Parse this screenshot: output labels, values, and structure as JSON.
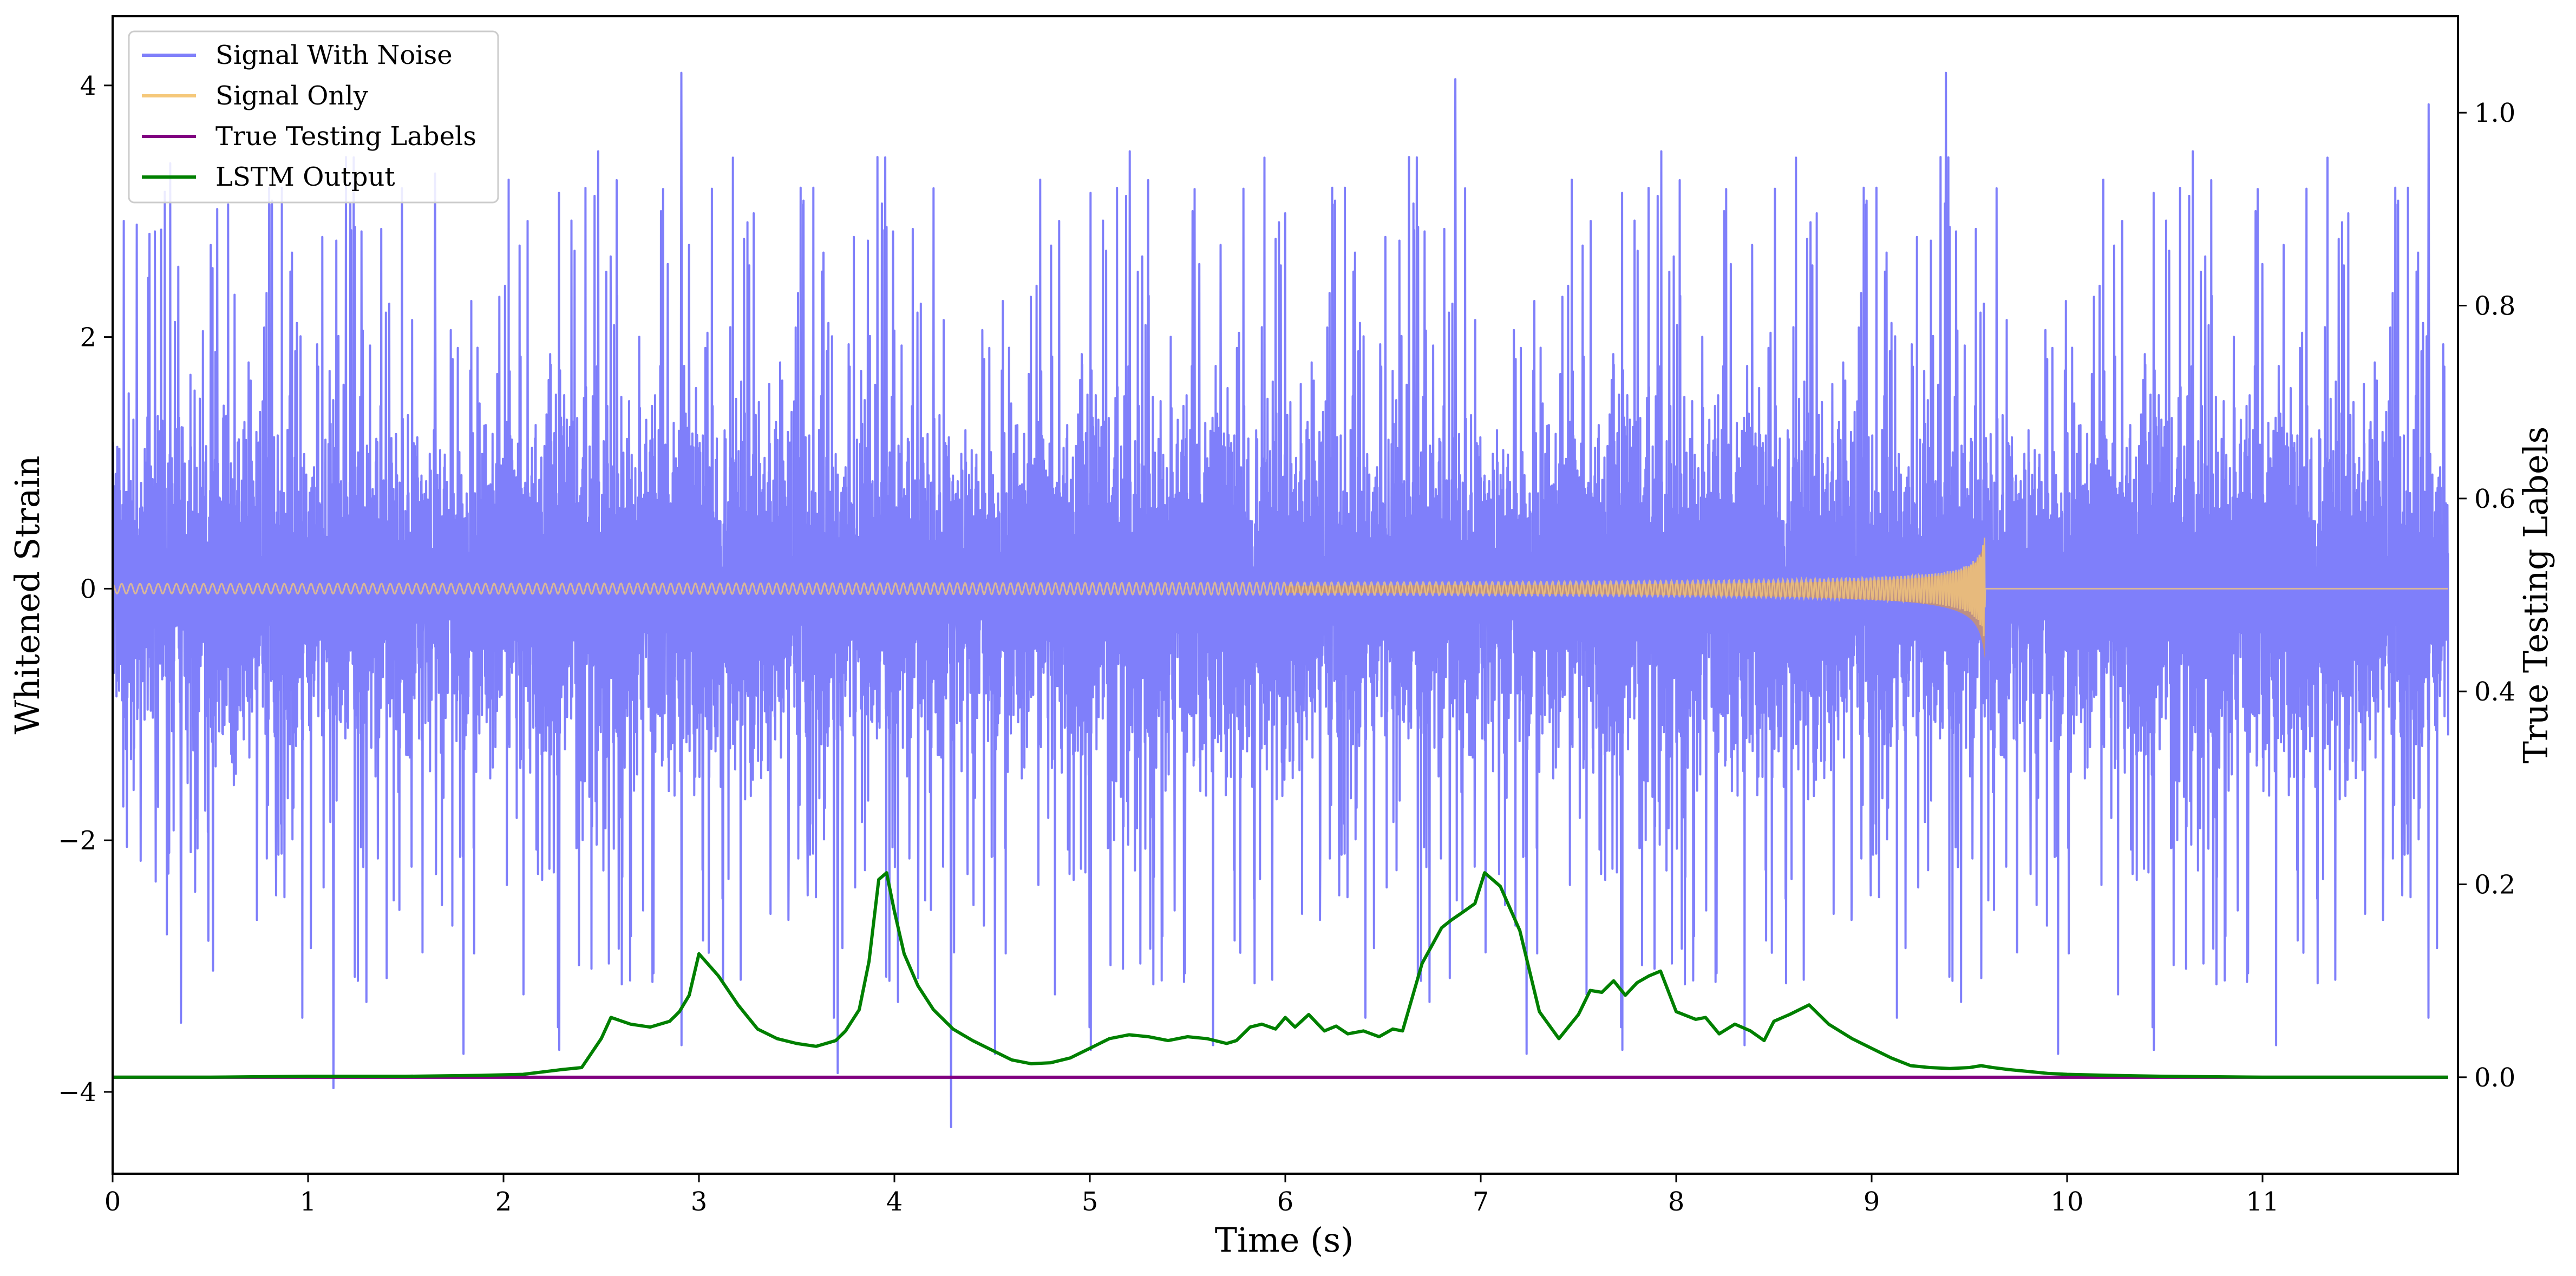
{
  "chart_data": {
    "type": "line",
    "title": "",
    "xlabel": "Time (s)",
    "ylabel": "Whitened Strain",
    "ylabel_right": "True Testing Labels",
    "xlim": [
      0,
      12
    ],
    "ylim": [
      -4.65,
      4.55
    ],
    "ylim_right": [
      -0.1,
      1.1
    ],
    "x_ticks": [
      0,
      1,
      2,
      3,
      4,
      5,
      6,
      7,
      8,
      9,
      10,
      11
    ],
    "x_tick_labels": [
      "0",
      "1",
      "2",
      "3",
      "4",
      "5",
      "6",
      "7",
      "8",
      "9",
      "10",
      "11"
    ],
    "y_ticks": [
      -4,
      -2,
      0,
      2,
      4
    ],
    "y_tick_labels": [
      "−4",
      "−2",
      "0",
      "2",
      "4"
    ],
    "y_ticks_right": [
      0.0,
      0.2,
      0.4,
      0.6,
      0.8,
      1.0
    ],
    "y_tick_labels_right": [
      "0.0",
      "0.2",
      "0.4",
      "0.6",
      "0.8",
      "1.0"
    ],
    "grid": false,
    "legend_position": "top-left",
    "series": [
      {
        "name": "Signal With Noise",
        "axis": "left",
        "color": "#7f7ffa",
        "kind": "noise",
        "typical_band": [
          -1.5,
          1.5
        ],
        "peak_points": [
          {
            "x": 1.13,
            "y": -3.97
          },
          {
            "x": 2.91,
            "y": 4.1
          },
          {
            "x": 3.71,
            "y": -3.85
          },
          {
            "x": 4.29,
            "y": -4.28
          },
          {
            "x": 6.87,
            "y": 4.05
          },
          {
            "x": 9.38,
            "y": 4.1
          },
          {
            "x": 0.35,
            "y": -3.45
          },
          {
            "x": 11.85,
            "y": 3.85
          },
          {
            "x": 1.65,
            "y": 3.3
          }
        ]
      },
      {
        "name": "Signal Only",
        "axis": "left",
        "color": "#f5c87a",
        "kind": "chirp",
        "t_merger": 9.58,
        "peak_amplitude": 0.42,
        "post_merger_value": 0.0
      },
      {
        "name": "True Testing Labels",
        "axis": "right",
        "color": "#800080",
        "x": [
          0,
          11.95
        ],
        "y": [
          0,
          0
        ]
      },
      {
        "name": "LSTM Output",
        "axis": "right",
        "color": "#008000",
        "x": [
          0,
          0.5,
          1.0,
          1.5,
          1.9,
          2.1,
          2.3,
          2.4,
          2.5,
          2.55,
          2.65,
          2.75,
          2.85,
          2.9,
          2.95,
          3.0,
          3.1,
          3.2,
          3.3,
          3.4,
          3.5,
          3.6,
          3.7,
          3.75,
          3.82,
          3.87,
          3.92,
          3.96,
          4.0,
          4.05,
          4.12,
          4.2,
          4.3,
          4.4,
          4.5,
          4.6,
          4.7,
          4.8,
          4.9,
          5.0,
          5.1,
          5.2,
          5.3,
          5.4,
          5.5,
          5.6,
          5.7,
          5.75,
          5.82,
          5.88,
          5.95,
          6.0,
          6.05,
          6.12,
          6.2,
          6.26,
          6.32,
          6.4,
          6.48,
          6.55,
          6.6,
          6.7,
          6.8,
          6.85,
          6.9,
          6.97,
          7.02,
          7.1,
          7.2,
          7.3,
          7.4,
          7.5,
          7.56,
          7.62,
          7.68,
          7.74,
          7.8,
          7.86,
          7.92,
          8.0,
          8.1,
          8.15,
          8.22,
          8.3,
          8.38,
          8.45,
          8.5,
          8.58,
          8.68,
          8.78,
          8.9,
          9.0,
          9.1,
          9.2,
          9.3,
          9.4,
          9.5,
          9.56,
          9.62,
          9.7,
          9.8,
          9.9,
          10.0,
          10.2,
          10.5,
          11.0,
          11.5,
          11.95
        ],
        "y": [
          0.0,
          0.0,
          0.001,
          0.001,
          0.002,
          0.003,
          0.008,
          0.01,
          0.04,
          0.062,
          0.055,
          0.052,
          0.058,
          0.068,
          0.085,
          0.128,
          0.105,
          0.075,
          0.05,
          0.04,
          0.035,
          0.032,
          0.038,
          0.048,
          0.07,
          0.12,
          0.205,
          0.212,
          0.172,
          0.128,
          0.095,
          0.07,
          0.05,
          0.038,
          0.028,
          0.018,
          0.014,
          0.015,
          0.02,
          0.03,
          0.04,
          0.044,
          0.042,
          0.038,
          0.042,
          0.04,
          0.035,
          0.038,
          0.052,
          0.055,
          0.05,
          0.062,
          0.052,
          0.065,
          0.048,
          0.053,
          0.045,
          0.048,
          0.042,
          0.05,
          0.048,
          0.118,
          0.155,
          0.163,
          0.17,
          0.18,
          0.212,
          0.198,
          0.152,
          0.068,
          0.04,
          0.065,
          0.09,
          0.088,
          0.1,
          0.085,
          0.098,
          0.105,
          0.11,
          0.068,
          0.06,
          0.062,
          0.045,
          0.055,
          0.048,
          0.038,
          0.058,
          0.065,
          0.075,
          0.055,
          0.04,
          0.03,
          0.02,
          0.012,
          0.01,
          0.009,
          0.01,
          0.012,
          0.01,
          0.008,
          0.006,
          0.004,
          0.003,
          0.002,
          0.001,
          0.0,
          0.0,
          0.0
        ]
      }
    ]
  }
}
